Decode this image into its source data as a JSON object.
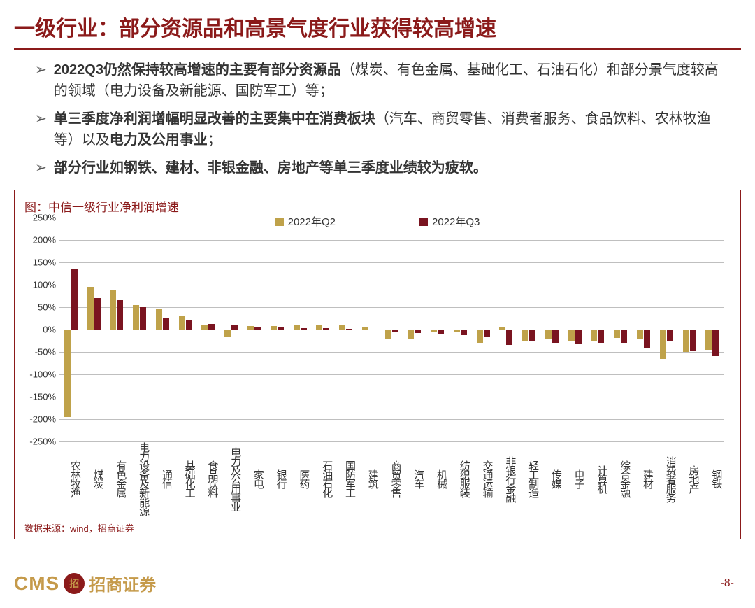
{
  "title": "一级行业：部分资源品和高景气度行业获得较高增速",
  "bullets": [
    {
      "bold": "2022Q3仍然保持较高增速的主要有部分资源品",
      "rest": "（煤炭、有色金属、基础化工、石油石化）和部分景气度较高的领域（电力设备及新能源、国防军工）等；"
    },
    {
      "bold": "单三季度净利润增幅明显改善的主要集中在消费板块",
      "rest": "（汽车、商贸零售、消费者服务、食品饮料、农林牧渔等）以及电力及公用事业；",
      "bold2_idx": 40,
      "bold2_text": "电力及公用事业"
    },
    {
      "bold": "部分行业如钢铁、建材、非银金融、房地产等单三季度业绩较为疲软。",
      "rest": ""
    }
  ],
  "chart": {
    "title": "图：中信一级行业净利润增速",
    "type": "bar",
    "ylim": [
      -250,
      250
    ],
    "ytick_step": 50,
    "grid_color": "#bfbfbf",
    "zero_color": "#595959",
    "background_color": "#ffffff",
    "series": [
      {
        "name": "2022年Q2",
        "color": "#bfa24a"
      },
      {
        "name": "2022年Q3",
        "color": "#7a1420"
      }
    ],
    "categories": [
      "农林牧渔",
      "煤炭",
      "有色金属",
      "电力设备及新能源",
      "通信",
      "基础化工",
      "食品饮料",
      "电力及公用事业",
      "家电",
      "银行",
      "医药",
      "石油石化",
      "国防军工",
      "建筑",
      "商贸零售",
      "汽车",
      "机械",
      "纺织服装",
      "交通运输",
      "非银行金融",
      "轻工制造",
      "传媒",
      "电子",
      "计算机",
      "综合金融",
      "建材",
      "消费者服务",
      "房地产",
      "钢铁"
    ],
    "values_q2": [
      -196,
      95,
      88,
      55,
      45,
      30,
      10,
      -15,
      8,
      8,
      10,
      10,
      10,
      5,
      -22,
      -20,
      -5,
      -5,
      -30,
      5,
      -25,
      -22,
      -25,
      -25,
      -18,
      -22,
      -65,
      -50,
      -45
    ],
    "values_q3": [
      135,
      70,
      65,
      50,
      25,
      20,
      12,
      10,
      5,
      5,
      3,
      3,
      2,
      -2,
      -5,
      -8,
      -10,
      -12,
      -15,
      -35,
      -25,
      -30,
      -32,
      -30,
      -30,
      -40,
      -25,
      -48,
      -60
    ]
  },
  "source": "数据来源：wind，招商证券",
  "footer": {
    "logo_abbr": "CMS",
    "logo_name": "招商证券",
    "page": "-8-"
  }
}
